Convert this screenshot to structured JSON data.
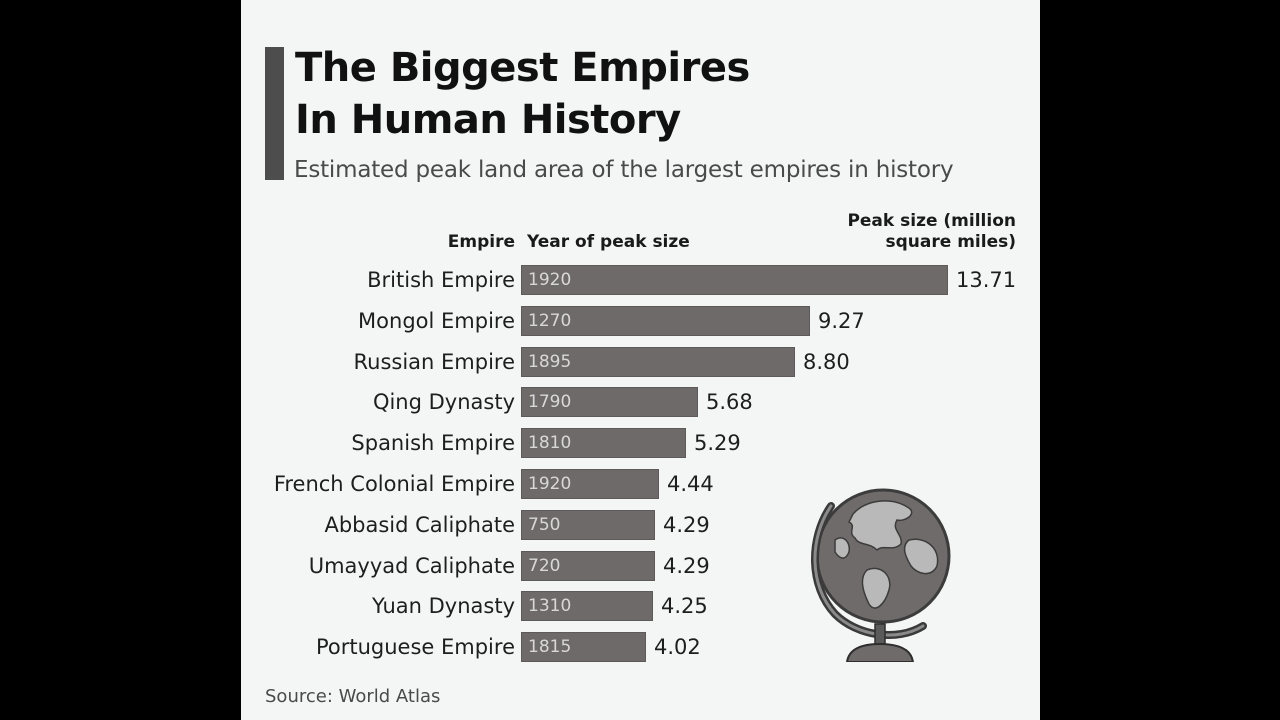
{
  "title_line1": "The Biggest Empires",
  "title_line2": "In Human History",
  "subtitle": "Estimated peak land area of the largest empires in history",
  "headers": {
    "empire": "Empire",
    "year": "Year of peak size",
    "peak": "Peak size (million square miles)"
  },
  "source": "Source: World Atlas",
  "colors": {
    "bar": "#6e6a69",
    "accent": "#4d4d4d",
    "panel": "#f4f6f6"
  },
  "icons": {
    "globe": "globe-icon"
  },
  "chart_data": {
    "type": "bar",
    "orientation": "horizontal",
    "title": "The Biggest Empires In Human History",
    "subtitle": "Estimated peak land area of the largest empires in history",
    "ylabel": "Peak size (million square miles)",
    "xlim": [
      0,
      13.71
    ],
    "categories": [
      "British Empire",
      "Mongol Empire",
      "Russian Empire",
      "Qing Dynasty",
      "Spanish Empire",
      "French Colonial Empire",
      "Abbasid Caliphate",
      "Umayyad Caliphate",
      "Yuan Dynasty",
      "Portuguese Empire"
    ],
    "years": [
      "1920",
      "1270",
      "1895",
      "1790",
      "1810",
      "1920",
      "750",
      "720",
      "1310",
      "1815"
    ],
    "values": [
      13.71,
      9.27,
      8.8,
      5.68,
      5.29,
      4.44,
      4.29,
      4.29,
      4.25,
      4.02
    ],
    "value_labels": [
      "13.71",
      "9.27",
      "8.80",
      "5.68",
      "5.29",
      "4.44",
      "4.29",
      "4.29",
      "4.25",
      "4.02"
    ],
    "grid": false,
    "legend": "none"
  }
}
